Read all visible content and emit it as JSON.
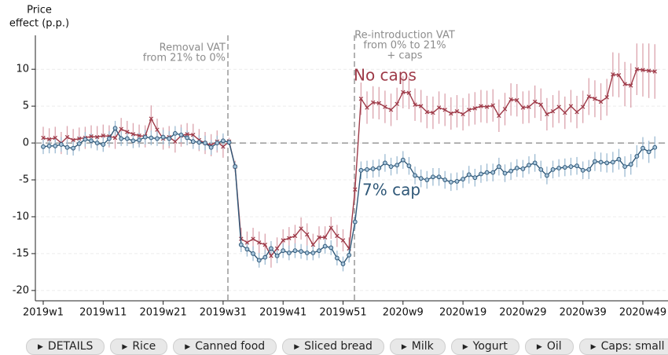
{
  "chart_data": {
    "type": "line",
    "ylabel_lines": [
      "Price",
      "effect (p.p.)"
    ],
    "categories": [
      "2019w1",
      null,
      null,
      null,
      null,
      null,
      null,
      null,
      null,
      null,
      "2019w11",
      null,
      null,
      null,
      null,
      null,
      null,
      null,
      null,
      null,
      "2019w21",
      null,
      null,
      null,
      null,
      null,
      null,
      null,
      null,
      null,
      "2019w31",
      null,
      null,
      null,
      null,
      null,
      null,
      null,
      null,
      null,
      "2019w41",
      null,
      null,
      null,
      null,
      null,
      null,
      null,
      null,
      null,
      "2019w51",
      null,
      null,
      null,
      null,
      null,
      null,
      null,
      null,
      null,
      "2020w9",
      null,
      null,
      null,
      null,
      null,
      null,
      null,
      null,
      null,
      "2020w19",
      null,
      null,
      null,
      null,
      null,
      null,
      null,
      null,
      null,
      "2020w29",
      null,
      null,
      null,
      null,
      null,
      null,
      null,
      null,
      null,
      "2020w39",
      null,
      null,
      null,
      null,
      null,
      null,
      null,
      null,
      null,
      "2020w49",
      null,
      null
    ],
    "series": [
      {
        "name": "No caps",
        "color": "#9e3a48",
        "error_color": "#dba3ad",
        "marker": "x",
        "values": [
          0.7,
          0.5,
          0.7,
          0.0,
          0.8,
          0.4,
          0.6,
          0.7,
          0.9,
          0.8,
          1.0,
          0.9,
          0.7,
          1.9,
          1.5,
          1.2,
          1.0,
          0.9,
          3.3,
          1.8,
          0.6,
          0.8,
          0.2,
          1.0,
          1.2,
          1.1,
          0.4,
          0.0,
          -0.3,
          0.2,
          -0.5,
          0.2,
          -3.2,
          -13.0,
          -13.5,
          -13.0,
          -13.5,
          -13.8,
          -15.3,
          -14.3,
          -13.2,
          -12.9,
          -12.6,
          -11.6,
          -12.4,
          -13.8,
          -12.8,
          -12.8,
          -11.5,
          -12.6,
          -13.2,
          -14.3,
          -6.3,
          6.0,
          4.8,
          5.5,
          5.4,
          4.9,
          4.5,
          5.3,
          6.9,
          6.8,
          5.2,
          5.0,
          4.2,
          4.1,
          4.8,
          4.5,
          4.0,
          4.3,
          3.9,
          4.5,
          4.7,
          5.0,
          4.9,
          5.1,
          3.7,
          4.6,
          5.9,
          5.8,
          4.8,
          4.9,
          5.6,
          5.2,
          3.9,
          4.3,
          4.9,
          4.1,
          5.0,
          4.2,
          4.9,
          6.3,
          6.0,
          5.6,
          6.2,
          9.3,
          9.2,
          8.0,
          7.8,
          10.0,
          9.9,
          9.8,
          9.7
        ],
        "errors": [
          1.5,
          1.5,
          1.5,
          1.5,
          1.5,
          1.5,
          1.5,
          1.5,
          1.5,
          1.5,
          1.5,
          1.5,
          1.5,
          1.5,
          1.5,
          1.5,
          1.5,
          1.5,
          1.8,
          1.5,
          1.5,
          1.5,
          1.5,
          1.5,
          1.5,
          1.5,
          1.5,
          1.5,
          1.5,
          1.5,
          1.5,
          0.5,
          0.8,
          1.5,
          1.5,
          1.5,
          1.5,
          1.5,
          1.6,
          1.5,
          1.5,
          1.5,
          1.5,
          1.5,
          1.5,
          1.5,
          1.5,
          1.5,
          1.5,
          1.5,
          1.5,
          1.5,
          1.5,
          2.2,
          2.2,
          2.2,
          2.2,
          2.2,
          2.2,
          2.2,
          2.2,
          2.2,
          2.2,
          2.2,
          2.2,
          2.2,
          2.2,
          2.2,
          2.2,
          2.2,
          2.2,
          2.2,
          2.2,
          2.2,
          2.2,
          2.2,
          2.2,
          2.2,
          2.2,
          2.2,
          2.2,
          2.2,
          2.2,
          2.2,
          2.2,
          2.2,
          2.2,
          2.2,
          2.2,
          2.2,
          2.2,
          2.5,
          2.5,
          2.5,
          2.5,
          3.0,
          3.0,
          3.0,
          3.0,
          3.5,
          3.6,
          3.7,
          3.7
        ]
      },
      {
        "name": "7% cap",
        "color": "#2f5878",
        "error_color": "#9dbbd2",
        "marker": "o",
        "marker_fill": "#a9c6dc",
        "values": [
          -0.5,
          -0.4,
          -0.4,
          -0.2,
          -0.6,
          -0.7,
          -0.1,
          0.5,
          0.3,
          0.0,
          -0.2,
          0.6,
          2.0,
          0.6,
          0.6,
          0.3,
          0.4,
          0.8,
          0.7,
          0.6,
          0.8,
          0.6,
          1.3,
          1.1,
          0.7,
          0.2,
          0.1,
          0.0,
          -0.6,
          0.0,
          0.3,
          0.1,
          -3.2,
          -13.8,
          -14.4,
          -15.0,
          -15.9,
          -15.5,
          -14.3,
          -15.3,
          -14.6,
          -14.9,
          -14.6,
          -14.7,
          -14.9,
          -14.9,
          -14.6,
          -14.0,
          -14.2,
          -15.6,
          -16.4,
          -15.2,
          -10.7,
          -3.7,
          -3.6,
          -3.5,
          -3.4,
          -2.7,
          -3.2,
          -3.0,
          -2.3,
          -3.1,
          -4.4,
          -4.8,
          -5.0,
          -4.6,
          -4.6,
          -5.0,
          -5.3,
          -5.2,
          -4.9,
          -4.3,
          -4.7,
          -4.2,
          -4.0,
          -4.0,
          -3.2,
          -4.1,
          -3.8,
          -3.4,
          -3.5,
          -3.0,
          -2.7,
          -3.6,
          -4.4,
          -3.6,
          -3.4,
          -3.3,
          -3.2,
          -3.1,
          -3.7,
          -3.6,
          -2.5,
          -2.6,
          -2.7,
          -2.6,
          -2.2,
          -3.2,
          -2.9,
          -1.8,
          -0.7,
          -1.2,
          -0.6
        ],
        "errors": [
          1.0,
          1.0,
          1.0,
          1.0,
          1.0,
          1.0,
          1.0,
          1.0,
          1.0,
          1.0,
          1.0,
          1.0,
          1.0,
          1.0,
          1.0,
          1.0,
          1.0,
          1.0,
          1.0,
          1.0,
          1.0,
          1.0,
          1.0,
          1.0,
          1.0,
          1.0,
          1.0,
          1.0,
          1.0,
          1.0,
          1.0,
          0.4,
          0.6,
          1.0,
          1.0,
          1.0,
          1.0,
          1.0,
          1.0,
          1.0,
          1.0,
          1.0,
          1.0,
          1.0,
          1.0,
          1.0,
          1.0,
          1.0,
          1.0,
          1.0,
          1.0,
          1.0,
          1.0,
          1.2,
          1.2,
          1.2,
          1.2,
          1.2,
          1.2,
          1.2,
          1.2,
          1.2,
          1.2,
          1.2,
          1.2,
          1.2,
          1.2,
          1.2,
          1.2,
          1.2,
          1.2,
          1.2,
          1.2,
          1.2,
          1.2,
          1.2,
          1.2,
          1.2,
          1.2,
          1.2,
          1.2,
          1.2,
          1.2,
          1.2,
          1.2,
          1.2,
          1.2,
          1.2,
          1.2,
          1.2,
          1.2,
          1.3,
          1.3,
          1.3,
          1.3,
          1.4,
          1.4,
          1.4,
          1.4,
          1.5,
          1.5,
          1.5,
          1.5
        ]
      }
    ],
    "ylim": [
      -21.4,
      14.6
    ],
    "yticks": [
      10,
      5,
      0,
      -5,
      -10,
      -15,
      -20
    ],
    "reference_line": 0,
    "grid": true,
    "annotations": [
      {
        "lines": [
          "Removal VAT",
          "from 21% to 0%"
        ]
      },
      {
        "lines": [
          "Re-introduction VAT",
          "from 0% to 21%",
          "+ caps"
        ]
      }
    ]
  },
  "buttons": [
    "DETAILS",
    "Rice",
    "Canned food",
    "Sliced bread",
    "Milk",
    "Yogurt",
    "Oil",
    "Caps: small"
  ]
}
